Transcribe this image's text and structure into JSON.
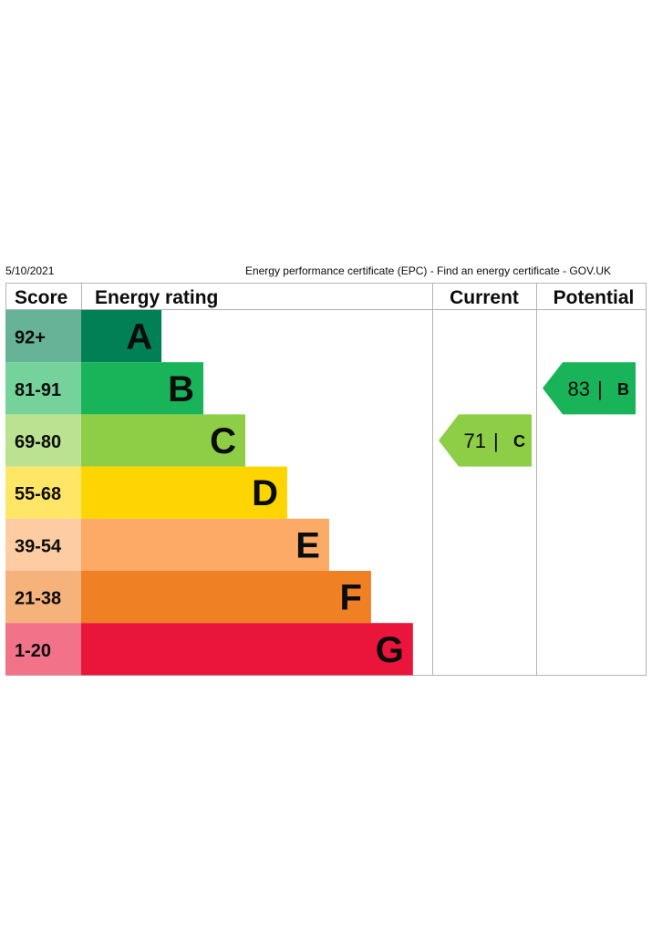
{
  "header": {
    "date": "5/10/2021",
    "title": "Energy performance certificate (EPC) - Find an energy certificate - GOV.UK"
  },
  "table": {
    "col_score": "Score",
    "col_rating": "Energy rating",
    "col_current": "Current",
    "col_potential": "Potential"
  },
  "bands": [
    {
      "score": "92+",
      "letter": "A",
      "color": "#008054",
      "score_bg": "#66b398",
      "extent": 0.23
    },
    {
      "score": "81-91",
      "letter": "B",
      "color": "#19b459",
      "score_bg": "#75d29b",
      "extent": 0.35
    },
    {
      "score": "69-80",
      "letter": "C",
      "color": "#8dce46",
      "score_bg": "#bbe290",
      "extent": 0.47
    },
    {
      "score": "55-68",
      "letter": "D",
      "color": "#ffd500",
      "score_bg": "#ffe666",
      "extent": 0.59
    },
    {
      "score": "39-54",
      "letter": "E",
      "color": "#fcaa65",
      "score_bg": "#fdcca3",
      "extent": 0.71
    },
    {
      "score": "21-38",
      "letter": "F",
      "color": "#ef8023",
      "score_bg": "#f5b37b",
      "extent": 0.83
    },
    {
      "score": "1-20",
      "letter": "G",
      "color": "#e9153b",
      "score_bg": "#f27389",
      "extent": 0.95
    }
  ],
  "current": {
    "value": "71",
    "letter": "C",
    "band_index": 2,
    "color": "#8dce46"
  },
  "potential": {
    "value": "83",
    "letter": "B",
    "band_index": 1,
    "color": "#19b459"
  }
}
